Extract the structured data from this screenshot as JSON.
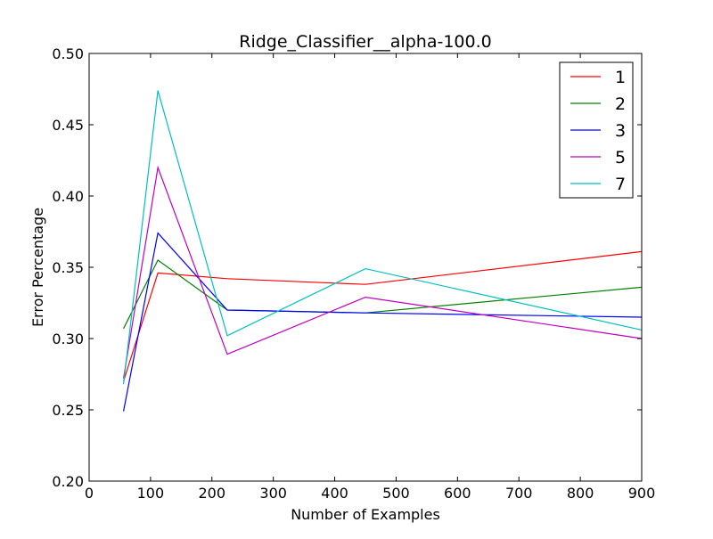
{
  "chart_data": {
    "type": "line",
    "title": "Ridge_Classifier__alpha-100.0",
    "xlabel": "Number of Examples",
    "ylabel": "Error Percentage",
    "xlim": [
      0,
      900
    ],
    "ylim": [
      0.2,
      0.5
    ],
    "xticks": [
      0,
      100,
      200,
      300,
      400,
      500,
      600,
      700,
      800,
      900
    ],
    "xtick_labels": [
      "0",
      "100",
      "200",
      "300",
      "400",
      "500",
      "600",
      "700",
      "800",
      "900"
    ],
    "yticks": [
      0.2,
      0.25,
      0.3,
      0.35,
      0.4,
      0.45,
      0.5
    ],
    "ytick_labels": [
      "0.20",
      "0.25",
      "0.30",
      "0.35",
      "0.40",
      "0.45",
      "0.50"
    ],
    "grid": false,
    "legend_position": "top-right",
    "x": [
      56,
      112,
      225,
      450,
      900
    ],
    "series": [
      {
        "name": "1",
        "color": "#ff0000",
        "values": [
          0.27,
          0.346,
          0.342,
          0.338,
          0.361
        ]
      },
      {
        "name": "2",
        "color": "#008000",
        "values": [
          0.307,
          0.355,
          0.32,
          0.318,
          0.336
        ]
      },
      {
        "name": "3",
        "color": "#0000ff",
        "values": [
          0.249,
          0.374,
          0.32,
          0.318,
          0.315
        ]
      },
      {
        "name": "5",
        "color": "#bf00bf",
        "values": [
          0.272,
          0.42,
          0.289,
          0.329,
          0.3
        ]
      },
      {
        "name": "7",
        "color": "#00bfbf",
        "values": [
          0.268,
          0.474,
          0.302,
          0.349,
          0.306
        ]
      }
    ]
  }
}
